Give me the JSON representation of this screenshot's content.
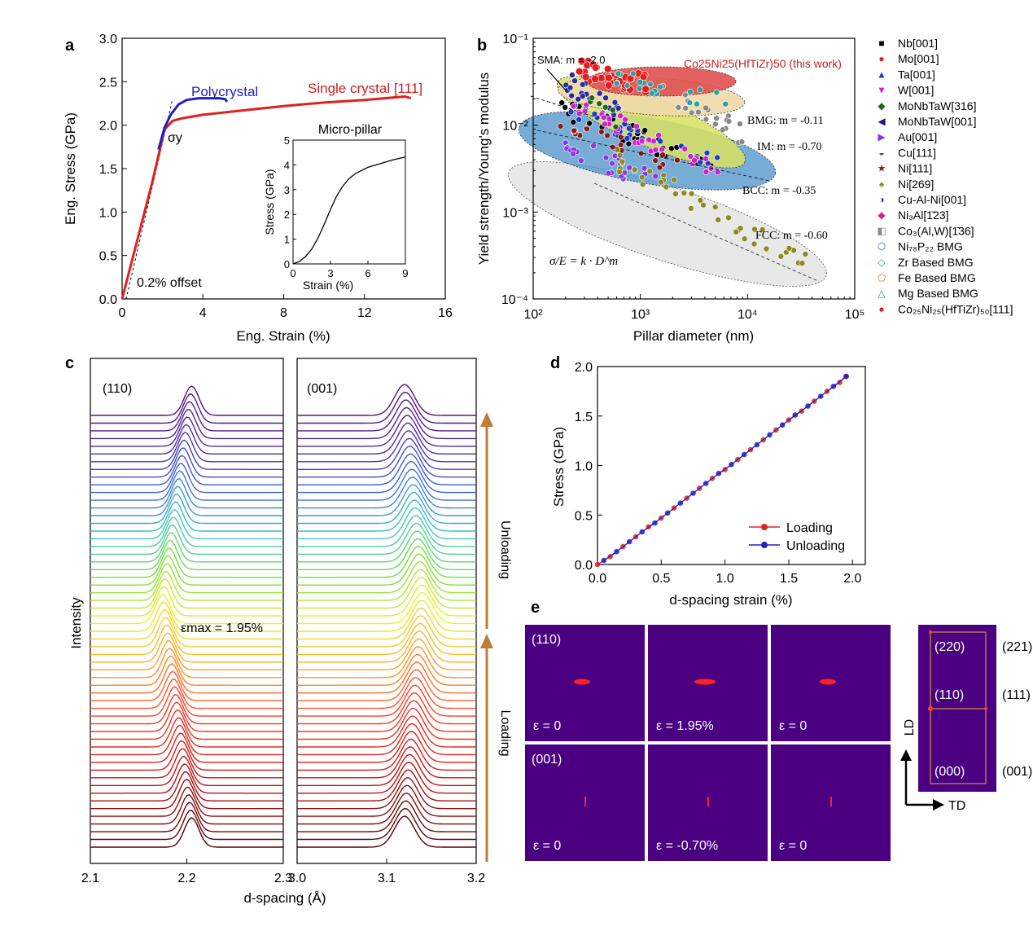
{
  "panels": {
    "a": "a",
    "b": "b",
    "c": "c",
    "d": "d",
    "e": "e"
  },
  "colors": {
    "red": "#e02020",
    "blue": "#2020c0",
    "orange_arrow": "#c07a3a",
    "purple_bg": "#4b0082",
    "heat_red": "#ff2020",
    "grid_yellow": "#e8b030"
  },
  "chart_data": [
    {
      "panel": "a",
      "type": "line",
      "xlabel": "Eng. Strain (%)",
      "ylabel": "Eng. Stress (GPa)",
      "xlim": [
        0,
        16
      ],
      "ylim": [
        0,
        3.0
      ],
      "xticks": [
        "0",
        "4",
        "8",
        "12",
        "16"
      ],
      "yticks": [
        "0.0",
        "0.5",
        "1.0",
        "1.5",
        "2.0",
        "2.5",
        "3.0"
      ],
      "series": [
        {
          "name": "Single crystal [111]",
          "color": "#e02020",
          "x": [
            0,
            0.5,
            1.0,
            1.5,
            1.8,
            2.1,
            2.5,
            3,
            4,
            6,
            8,
            10,
            12,
            13,
            14,
            14.3
          ],
          "y": [
            0,
            0.45,
            0.9,
            1.35,
            1.65,
            1.95,
            2.05,
            2.08,
            2.12,
            2.17,
            2.22,
            2.26,
            2.29,
            2.31,
            2.33,
            2.31
          ]
        },
        {
          "name": "Polycrystal",
          "color": "#2020c0",
          "x": [
            1.8,
            2.1,
            2.4,
            2.8,
            3.2,
            3.8,
            4.3,
            4.8,
            5.1,
            5.2
          ],
          "y": [
            1.72,
            1.97,
            2.12,
            2.24,
            2.29,
            2.31,
            2.31,
            2.31,
            2.3,
            2.27
          ]
        }
      ],
      "offset_line": {
        "x": [
          0.2,
          2.5
        ],
        "y": [
          0,
          2.3
        ]
      },
      "annotations": [
        "σy",
        "0.2% offset"
      ],
      "inset": {
        "title": "Micro-pillar",
        "xlabel": "Strain (%)",
        "ylabel": "Stress (GPa)",
        "xlim": [
          0,
          9
        ],
        "ylim": [
          0,
          5
        ],
        "xticks": [
          "0",
          "3",
          "6",
          "9"
        ],
        "yticks": [
          "0",
          "1",
          "2",
          "3",
          "4",
          "5"
        ],
        "x": [
          0,
          0.5,
          1,
          1.5,
          2,
          2.5,
          3,
          3.5,
          4,
          4.5,
          5,
          6,
          7,
          8,
          9
        ],
        "y": [
          0,
          0.1,
          0.3,
          0.6,
          1.05,
          1.6,
          2.2,
          2.75,
          3.15,
          3.45,
          3.65,
          3.9,
          4.05,
          4.2,
          4.32
        ]
      }
    },
    {
      "panel": "b",
      "type": "scatter",
      "xlabel": "Pillar diameter (nm)",
      "ylabel": "Yield strength/Young's modulus",
      "xscale": "log",
      "yscale": "log",
      "xlim": [
        100,
        100000
      ],
      "ylim": [
        0.0001,
        0.1
      ],
      "xticks": [
        "10²",
        "10³",
        "10⁴",
        "10⁵"
      ],
      "yticks": [
        "10⁻⁴",
        "10⁻³",
        "10⁻²",
        "10⁻¹"
      ],
      "formula": "σ/E = k · D^m",
      "annotations": [
        "SMA: m = -2.0",
        "BMG: m = -0.11",
        "IM: m = -0.70",
        "BCC: m = -0.35",
        "FCC: m = -0.60"
      ],
      "highlight": "Co25Ni25(HfTiZr)50 (this work)",
      "legend_position": "right",
      "legend": [
        {
          "name": "Nb[001]",
          "marker": "■",
          "color": "#000000"
        },
        {
          "name": "Mo[001]",
          "marker": "●",
          "color": "#e02020"
        },
        {
          "name": "Ta[001]",
          "marker": "▲",
          "color": "#1a3cc8"
        },
        {
          "name": "W[001]",
          "marker": "▼",
          "color": "#d020d0"
        },
        {
          "name": "MoNbTaW[316]",
          "marker": "◆",
          "color": "#1a6a1a"
        },
        {
          "name": "MoNbTaW[001]",
          "marker": "◀",
          "color": "#1a1a7a"
        },
        {
          "name": "Au[001]",
          "marker": "▶",
          "color": "#8a3ae0"
        },
        {
          "name": "Cu[111]",
          "marker": "◒",
          "color": "#8a2a9a"
        },
        {
          "name": "Ni[111]",
          "marker": "★",
          "color": "#8a1a1a"
        },
        {
          "name": "Ni[269]",
          "marker": "♠",
          "color": "#8a8a20"
        },
        {
          "name": "Cu-Al-Ni[001]",
          "marker": "◑",
          "color": "#2a2aa0"
        },
        {
          "name": "Ni₃Al[1̄23]",
          "marker": "◆",
          "color": "#e0208a"
        },
        {
          "name": "Co₃(Al,W)[1̄36]",
          "marker": "◧",
          "color": "#888888"
        },
        {
          "name": "Ni₇₈P₂₂ BMG",
          "marker": "⬡",
          "color": "#3a5ab0"
        },
        {
          "name": "Zr Based BMG",
          "marker": "◇",
          "color": "#2aa0a0"
        },
        {
          "name": "Fe Based BMG",
          "marker": "⬠",
          "color": "#c08040"
        },
        {
          "name": "Mg Based BMG",
          "marker": "△",
          "color": "#20a040"
        },
        {
          "name": "Co₂₅Ni₂₅(HfTiZr)₅₀[111]",
          "marker": "●",
          "color": "#e02020"
        }
      ]
    },
    {
      "panel": "c",
      "type": "line",
      "xlabel": "d-spacing (Å)",
      "ylabel": "Intensity",
      "subplots": [
        {
          "label": "(110)",
          "xlim": [
            2.1,
            2.3
          ],
          "xticks": [
            "2.1",
            "2.2",
            "2.3"
          ],
          "peak_start": 2.205,
          "peak_min": 2.175,
          "peak_end": 2.205
        },
        {
          "label": "(001)",
          "xlim": [
            3.0,
            3.2
          ],
          "xticks": [
            "3.0",
            "3.1",
            "3.2"
          ],
          "peak_start": 3.12,
          "peak_min": 3.14,
          "peak_end": 3.12
        }
      ],
      "n_curves": 57,
      "annotations": [
        "εmax = 1.95%",
        "Loading",
        "Unloading"
      ]
    },
    {
      "panel": "d",
      "type": "line",
      "xlabel": "d-spacing strain (%)",
      "ylabel": "Stress (GPa)",
      "xlim": [
        0,
        2.1
      ],
      "ylim": [
        0,
        2.0
      ],
      "xticks": [
        "0.0",
        "0.5",
        "1.0",
        "1.5",
        "2.0"
      ],
      "yticks": [
        "0.0",
        "0.5",
        "1.0",
        "1.5",
        "2.0"
      ],
      "legend_position": "bottom-right",
      "series": [
        {
          "name": "Loading",
          "color": "#e02020",
          "x": [
            0.0,
            0.1,
            0.2,
            0.3,
            0.4,
            0.5,
            0.6,
            0.7,
            0.8,
            0.9,
            1.0,
            1.1,
            1.2,
            1.3,
            1.4,
            1.5,
            1.6,
            1.7,
            1.8,
            1.9,
            1.95
          ],
          "y": [
            0.0,
            0.08,
            0.18,
            0.28,
            0.38,
            0.47,
            0.57,
            0.67,
            0.77,
            0.87,
            0.96,
            1.06,
            1.16,
            1.26,
            1.36,
            1.46,
            1.55,
            1.65,
            1.75,
            1.84,
            1.9
          ]
        },
        {
          "name": "Unloading",
          "color": "#2020c0",
          "x": [
            1.95,
            1.85,
            1.75,
            1.65,
            1.55,
            1.45,
            1.35,
            1.25,
            1.15,
            1.05,
            0.95,
            0.85,
            0.75,
            0.65,
            0.55,
            0.45,
            0.35,
            0.25,
            0.15,
            0.05
          ],
          "y": [
            1.9,
            1.8,
            1.7,
            1.6,
            1.51,
            1.41,
            1.31,
            1.21,
            1.11,
            1.01,
            0.92,
            0.82,
            0.72,
            0.62,
            0.52,
            0.42,
            0.33,
            0.23,
            0.13,
            0.04
          ]
        }
      ]
    }
  ],
  "panel_e": {
    "rows": [
      {
        "label": "(110)",
        "strains": [
          "ε = 0",
          "ε = 1.95%",
          "ε = 0"
        ]
      },
      {
        "label": "(001)",
        "strains": [
          "ε = 0",
          "ε = -0.70%",
          "ε = 0"
        ]
      }
    ],
    "grid_labels_left": [
      "(220)",
      "(110)",
      "(000)"
    ],
    "grid_labels_right": [
      "(221)",
      "(111)",
      "(001)"
    ],
    "axis_ld": "LD",
    "axis_td": "TD"
  }
}
